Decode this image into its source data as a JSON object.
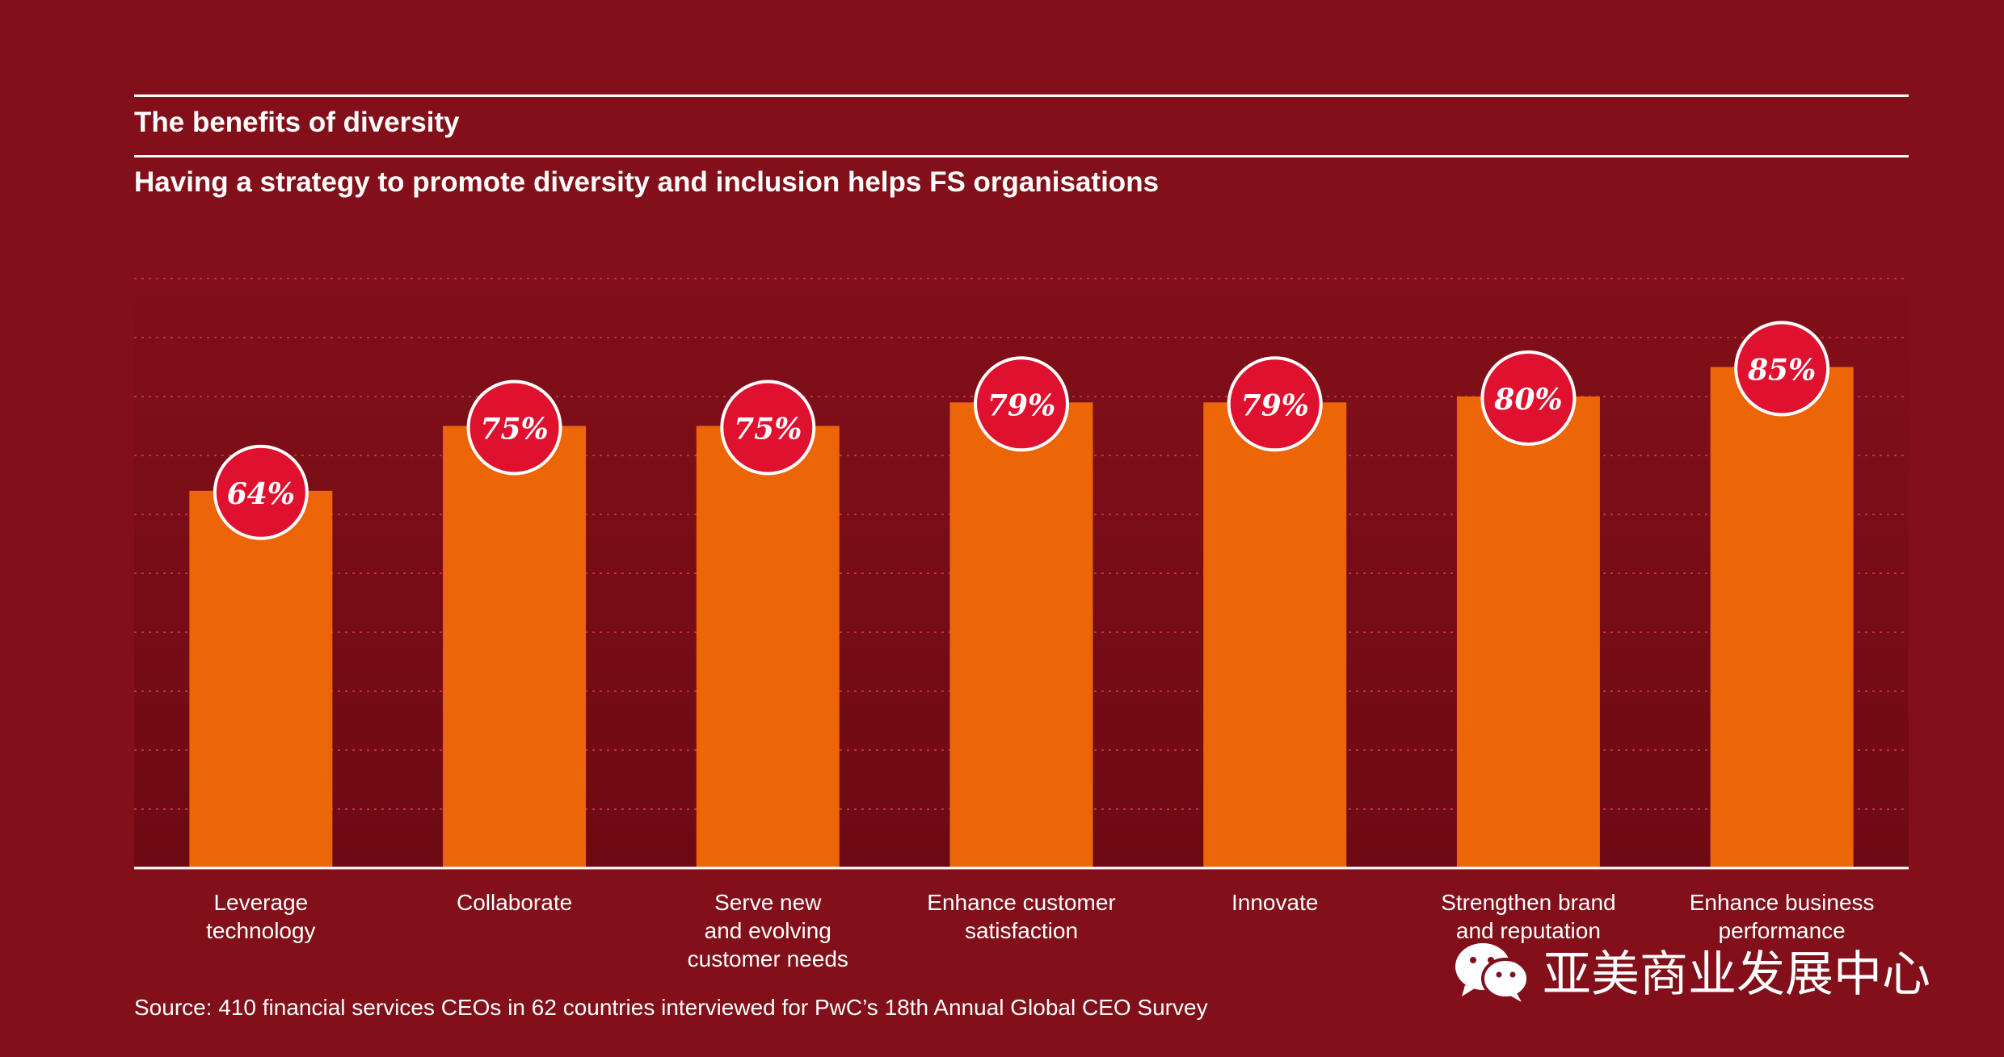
{
  "title": "The benefits of diversity",
  "subtitle": "Having a strategy to promote diversity and inclusion helps FS organisations",
  "source": "Source: 410 financial services CEOs in 62 countries interviewed for PwC’s 18th Annual Global CEO Survey",
  "watermark": "亚美商业发展中心",
  "colors": {
    "background": "#820F19",
    "bar": "#EC6608",
    "badge": "#E0102F",
    "grid": "#C0303F"
  },
  "chart_data": {
    "type": "bar",
    "categories": [
      [
        "Leverage",
        "technology"
      ],
      [
        "Collaborate"
      ],
      [
        "Serve new",
        "and evolving",
        "customer needs"
      ],
      [
        "Enhance customer",
        "satisfaction"
      ],
      [
        "Innovate"
      ],
      [
        "Strengthen brand",
        "and reputation"
      ],
      [
        "Enhance business",
        "performance"
      ]
    ],
    "values": [
      64,
      75,
      75,
      79,
      79,
      80,
      85
    ],
    "value_labels": [
      "64%",
      "75%",
      "75%",
      "79%",
      "79%",
      "80%",
      "85%"
    ],
    "ylim": [
      0,
      100
    ],
    "grid": true
  }
}
